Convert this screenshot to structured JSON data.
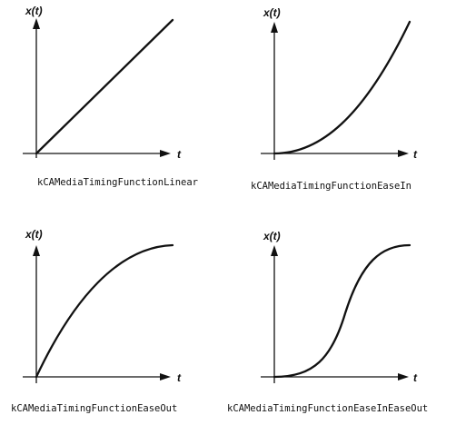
{
  "panels": [
    {
      "y_label": "x(t)",
      "x_label": "t",
      "caption": "kCAMediaTimingFunctionLinear",
      "curve": "linear"
    },
    {
      "y_label": "x(t)",
      "x_label": "t",
      "caption": "kCAMediaTimingFunctionEaseIn",
      "curve": "ease-in"
    },
    {
      "y_label": "x(t)",
      "x_label": "t",
      "caption": "kCAMediaTimingFunctionEaseOut",
      "curve": "ease-out"
    },
    {
      "y_label": "x(t)",
      "x_label": "t",
      "caption": "kCAMediaTimingFunctionEaseInEaseOut",
      "curve": "ease-in-ease-out"
    }
  ],
  "colors": {
    "ink": "#111111",
    "background": "#ffffff"
  }
}
